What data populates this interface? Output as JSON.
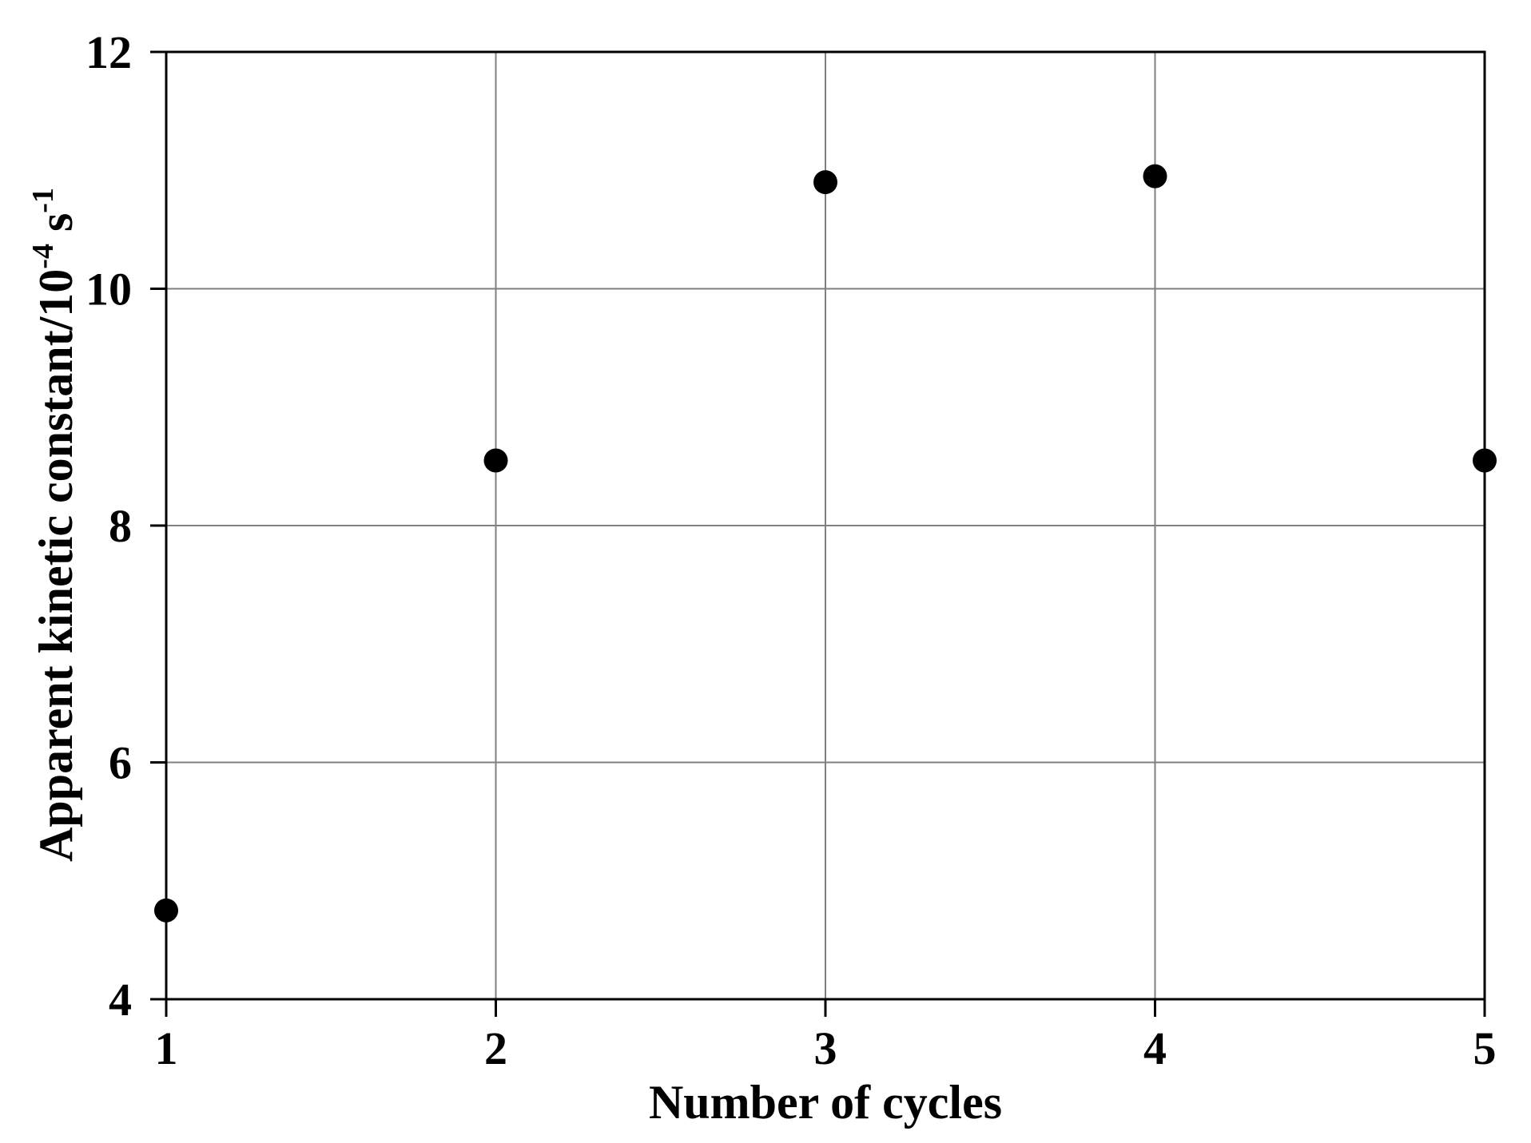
{
  "figure": {
    "background": "#ffffff",
    "text_color": "#000000"
  },
  "chart_data": {
    "type": "scatter",
    "title": "",
    "xlabel": "Number of cycles",
    "ylabel": "Apparent kinetic constant/10⁻⁴ s⁻¹",
    "ylabel_parts": {
      "main": "Apparent kinetic constant/10",
      "sup1": "-4",
      "mid": " s",
      "sup2": "-1"
    },
    "x": [
      1,
      2,
      3,
      4,
      5
    ],
    "y": [
      4.75,
      8.55,
      10.9,
      10.95,
      8.55
    ],
    "xlim": [
      1,
      5
    ],
    "ylim": [
      4,
      12
    ],
    "x_ticks": [
      1,
      2,
      3,
      4,
      5
    ],
    "x_tick_labels": [
      "1",
      "2",
      "3",
      "4",
      "5"
    ],
    "y_ticks": [
      4,
      6,
      8,
      10,
      12
    ],
    "y_tick_labels": [
      "4",
      "6",
      "8",
      "10",
      "12"
    ],
    "grid": true,
    "legend": "none",
    "marker": {
      "shape": "circle",
      "color": "#000000",
      "radius_px": 15
    },
    "colors": {
      "axis": "#000000",
      "gridline": "#808080",
      "text": "#000000"
    }
  }
}
